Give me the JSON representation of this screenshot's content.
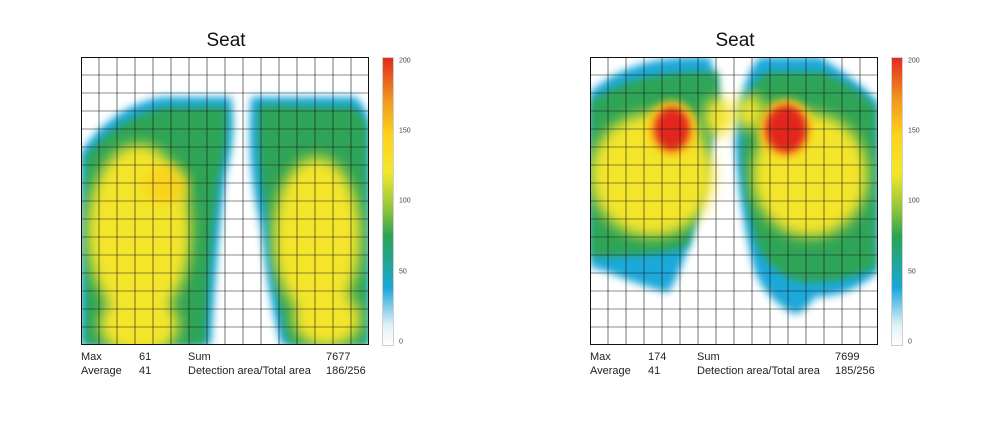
{
  "panels": [
    {
      "title": "Seat",
      "stats": {
        "max_label": "Max",
        "max_value": "61",
        "avg_label": "Average",
        "avg_value": "41",
        "sum_label": "Sum",
        "sum_value": "7677",
        "area_label": "Detection area/Total area",
        "area_value": "186/256"
      }
    },
    {
      "title": "Seat",
      "stats": {
        "max_label": "Max",
        "max_value": "174",
        "avg_label": "Average",
        "avg_value": "41",
        "sum_label": "Sum",
        "sum_value": "7699",
        "area_label": "Detection area/Total area",
        "area_value": "185/256"
      }
    }
  ],
  "chart_data": [
    {
      "type": "heatmap",
      "title": "Seat",
      "grid": "16x16",
      "colorbar": {
        "min": 0,
        "max": 200,
        "ticks": [
          0,
          50,
          100,
          150,
          200
        ]
      },
      "colorscale": [
        "#ffffff",
        "#19a7d8",
        "#2aa452",
        "#f3e72a",
        "#ffd21b",
        "#e22b1c"
      ],
      "stats": {
        "max": 61,
        "average": 41,
        "sum": 7677,
        "detection_area": 186,
        "total_area": 256
      }
    },
    {
      "type": "heatmap",
      "title": "Seat",
      "grid": "16x16",
      "colorbar": {
        "min": 0,
        "max": 200,
        "ticks": [
          0,
          50,
          100,
          150,
          200
        ]
      },
      "colorscale": [
        "#ffffff",
        "#19a7d8",
        "#2aa452",
        "#f3e72a",
        "#ffd21b",
        "#e22b1c"
      ],
      "stats": {
        "max": 174,
        "average": 41,
        "sum": 7699,
        "detection_area": 185,
        "total_area": 256
      }
    }
  ]
}
